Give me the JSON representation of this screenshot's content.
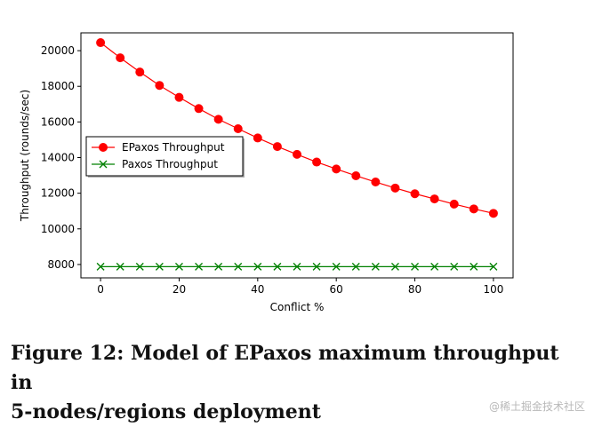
{
  "chart_data": {
    "type": "line",
    "title": "",
    "xlabel": "Conflict %",
    "ylabel": "Throughput (rounds/sec)",
    "xlim": [
      -5,
      105
    ],
    "ylim": [
      7250,
      21000
    ],
    "xticks": [
      0,
      20,
      40,
      60,
      80,
      100
    ],
    "yticks": [
      8000,
      10000,
      12000,
      14000,
      16000,
      18000,
      20000
    ],
    "x": [
      0,
      5,
      10,
      15,
      20,
      25,
      30,
      35,
      40,
      45,
      50,
      55,
      60,
      65,
      70,
      75,
      80,
      85,
      90,
      95,
      100
    ],
    "series": [
      {
        "name": "EPaxos Throughput",
        "color": "#ff0000",
        "marker": "circle",
        "values": [
          20450,
          19600,
          18800,
          18050,
          17380,
          16750,
          16150,
          15620,
          15100,
          14620,
          14180,
          13750,
          13360,
          12980,
          12630,
          12290,
          11970,
          11680,
          11390,
          11120,
          10870
        ]
      },
      {
        "name": "Paxos Throughput",
        "color": "#008000",
        "marker": "x",
        "values": [
          7880,
          7880,
          7880,
          7880,
          7880,
          7880,
          7880,
          7880,
          7880,
          7880,
          7880,
          7880,
          7880,
          7880,
          7880,
          7880,
          7880,
          7880,
          7880,
          7880,
          7880
        ]
      }
    ],
    "legend_position": "center-left"
  },
  "caption": {
    "line1": "Figure 12: Model of EPaxos maximum throughput in",
    "line2": "5-nodes/regions deployment"
  },
  "watermark": "@稀土掘金技术社区"
}
